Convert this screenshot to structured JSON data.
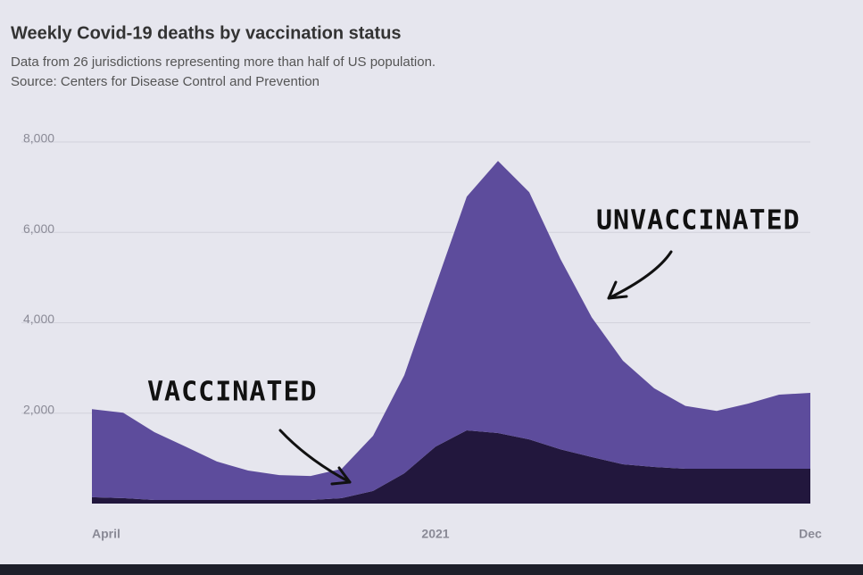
{
  "chart_data": {
    "type": "stacked-area",
    "title": "Weekly Covid-19 deaths by vaccination status",
    "subtitle": "Data from 26 jurisdictions representing more than half of US population.",
    "source": "Source: Centers for Disease Control and Prevention",
    "categories": [
      "April",
      null,
      null,
      null,
      null,
      null,
      null,
      null,
      null,
      null,
      null,
      "2021",
      null,
      null,
      null,
      null,
      null,
      null,
      null,
      null,
      null,
      null,
      null,
      "Dec"
    ],
    "series": [
      {
        "name": "VACCINATED",
        "color": "#22173d",
        "values": [
          140,
          120,
          80,
          80,
          80,
          80,
          80,
          80,
          120,
          280,
          670,
          1260,
          1620,
          1560,
          1420,
          1200,
          1030,
          870,
          810,
          770,
          770,
          770,
          770,
          770
        ]
      },
      {
        "name": "UNVACCINATED",
        "color": "#5d4c9c",
        "values": [
          1950,
          1890,
          1500,
          1180,
          850,
          650,
          550,
          530,
          650,
          1220,
          2170,
          3560,
          5170,
          6020,
          5470,
          4210,
          3090,
          2290,
          1740,
          1390,
          1280,
          1440,
          1640,
          1680
        ]
      }
    ],
    "ylim": [
      0,
      8000
    ],
    "yticks": [
      {
        "value": 2000,
        "label": "2,000"
      },
      {
        "value": 4000,
        "label": "4,000"
      },
      {
        "value": 6000,
        "label": "6,000"
      },
      {
        "value": 8000,
        "label": "8,000"
      }
    ],
    "grid": true
  }
}
